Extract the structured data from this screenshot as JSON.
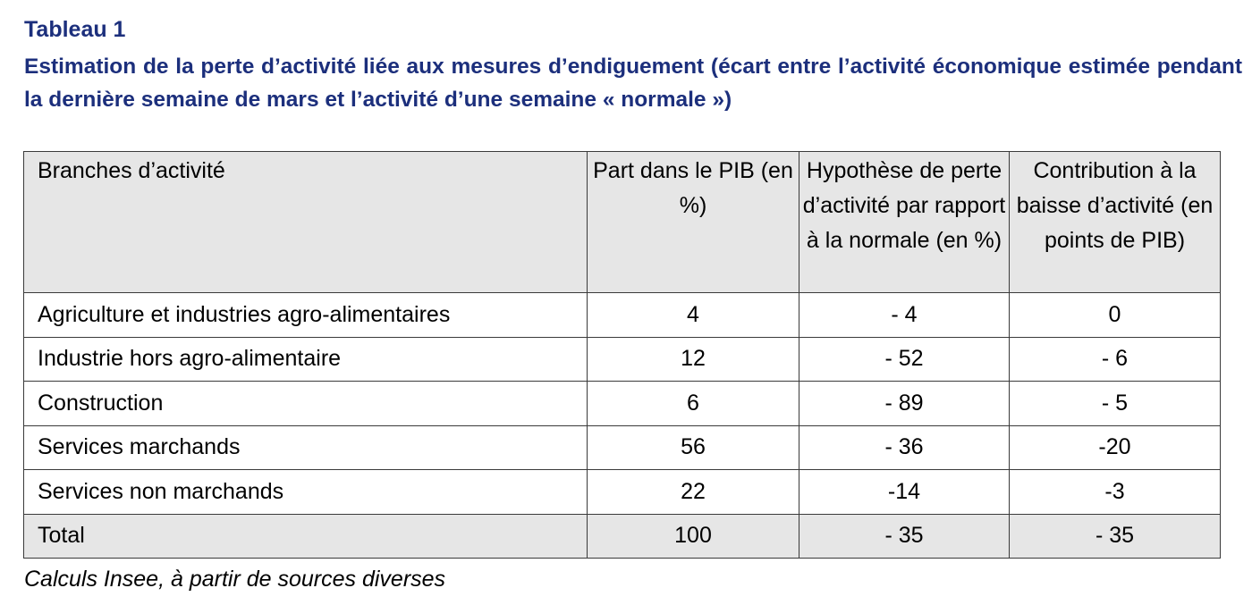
{
  "table_label": "Tableau 1",
  "title": "Estimation de la perte d’activité liée aux mesures d’endiguement (écart entre l’activité économique estimée pendant la dernière semaine de mars et l’activité d’une semaine « normale »)",
  "table": {
    "headers": [
      "Branches d’activité",
      "Part dans le PIB (en %)",
      "Hypothèse de perte d’activité par rapport à la normale (en %)",
      "Contribution à la baisse d’activité (en points de PIB)"
    ],
    "rows": [
      [
        "Agriculture et industries agro-alimentaires",
        "4",
        "- 4",
        "0"
      ],
      [
        "Industrie hors agro-alimentaire",
        "12",
        "- 52",
        "- 6"
      ],
      [
        "Construction",
        "6",
        "- 89",
        "- 5"
      ],
      [
        "Services marchands",
        "56",
        "- 36",
        "-20"
      ],
      [
        "Services non marchands",
        "22",
        "-14",
        "-3"
      ]
    ],
    "total": [
      "Total",
      "100",
      "- 35",
      "- 35"
    ]
  },
  "source": "Calculs Insee, à partir de sources diverses",
  "colors": {
    "title": "#1c2f7c",
    "shaded": "#e6e6e6",
    "border": "#3a3a3a"
  }
}
